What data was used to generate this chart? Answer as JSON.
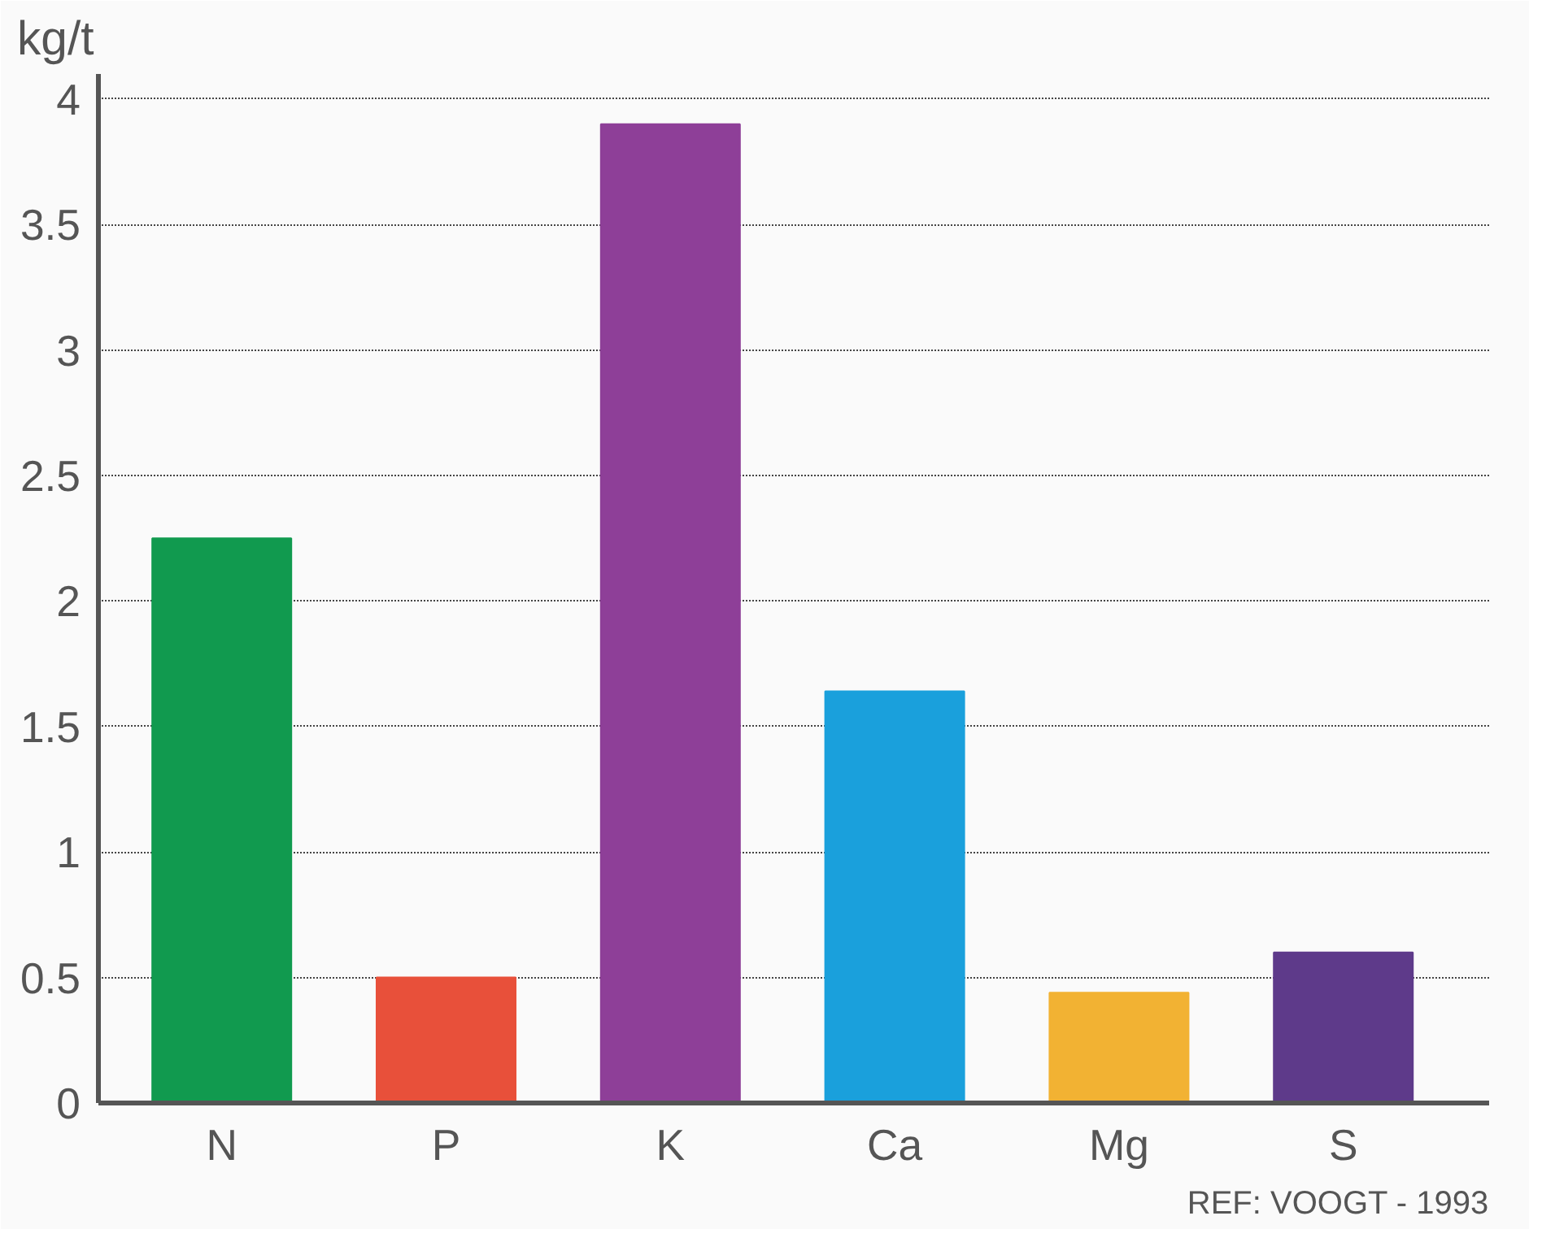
{
  "chart_data": {
    "type": "bar",
    "ylabel": "kg/t",
    "categories": [
      "N",
      "P",
      "K",
      "Ca",
      "Mg",
      "S"
    ],
    "values": [
      2.25,
      0.5,
      3.9,
      1.64,
      0.44,
      0.6
    ],
    "colors": [
      "#119a4f",
      "#e8503a",
      "#8e3f98",
      "#1aa0dc",
      "#f2b233",
      "#5e3a8a"
    ],
    "ylim": [
      0,
      4.1
    ],
    "yticks": [
      0,
      0.5,
      1,
      1.5,
      2,
      2.5,
      3,
      3.5,
      4
    ],
    "grid": "y",
    "annotations": [
      "REF: VOOGT - 1993"
    ]
  }
}
